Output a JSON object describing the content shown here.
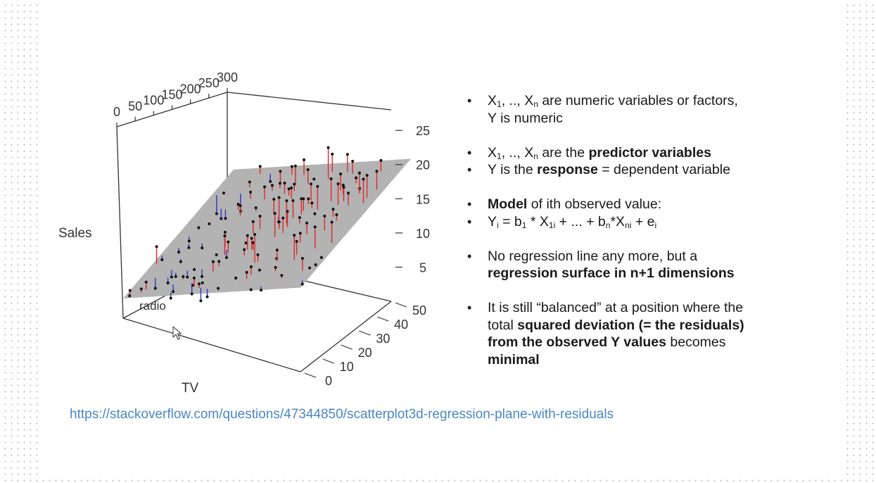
{
  "slide": {
    "bullets": [
      {
        "parts": [
          {
            "t": "X"
          },
          {
            "sub": "1"
          },
          {
            "t": ", .., X"
          },
          {
            "sub": "n"
          },
          {
            "t": " are numeric variables or factors,"
          },
          {
            "br": true
          },
          {
            "t": "Y is numeric"
          }
        ]
      },
      {
        "gap": true,
        "parts": [
          {
            "t": "X"
          },
          {
            "sub": "1"
          },
          {
            "t": ", .., X"
          },
          {
            "sub": "n"
          },
          {
            "t": " are  the "
          },
          {
            "b": "predictor variables"
          }
        ]
      },
      {
        "parts": [
          {
            "t": "Y is the "
          },
          {
            "b": "response"
          },
          {
            "t": " = dependent variable"
          }
        ]
      },
      {
        "gap": true,
        "parts": [
          {
            "b": "Model"
          },
          {
            "t": " of ith observed value:"
          }
        ]
      },
      {
        "parts": [
          {
            "t": "Y"
          },
          {
            "sub": "i"
          },
          {
            "t": " =  b"
          },
          {
            "sub": "1"
          },
          {
            "t": " * X"
          },
          {
            "sub": "1i"
          },
          {
            "t": " + ... + b"
          },
          {
            "sub": "n"
          },
          {
            "t": "*X"
          },
          {
            "sub": "ni"
          },
          {
            "t": " + e"
          },
          {
            "sub": "i"
          }
        ]
      },
      {
        "gap": true,
        "parts": [
          {
            "t": "No regression line any more, but a"
          },
          {
            "br": true
          },
          {
            "b": "regression surface in n+1 dimensions"
          }
        ]
      },
      {
        "gap": true,
        "parts": [
          {
            "t": "It is still “balanced” at a position where the"
          },
          {
            "br": true
          },
          {
            "t": "total "
          },
          {
            "b": "squared deviation (= the residuals)"
          },
          {
            "br": true
          },
          {
            "b": "from the observed Y values"
          },
          {
            "t": " becomes"
          },
          {
            "br": true
          },
          {
            "b": "minimal"
          }
        ]
      }
    ],
    "source_url": "https://stackoverflow.com/questions/47344850/scatterplot3d-regression-plane-with-residuals"
  },
  "plot": {
    "axis_labels": {
      "x": "TV",
      "y": "radio",
      "z": "Sales"
    },
    "x_ticks": [
      "0",
      "50",
      "100",
      "150",
      "200",
      "250",
      "300"
    ],
    "y_ticks": [
      "0",
      "10",
      "20",
      "30",
      "40",
      "50"
    ],
    "z_ticks": [
      "5",
      "10",
      "15",
      "20",
      "25"
    ],
    "colors": {
      "plane": "#b3b3b3",
      "point": "#111111",
      "residual_pos": "#e0262a",
      "residual_neg": "#2e33c9",
      "frame": "#333333"
    }
  },
  "chart_data": {
    "type": "scatter",
    "xlabel": "TV",
    "ylabel": "radio",
    "zlabel": "Sales",
    "xlim": [
      0,
      300
    ],
    "ylim": [
      0,
      50
    ],
    "zlim": [
      0,
      28
    ],
    "plane": {
      "intercept": 2.9,
      "b_tv": 0.046,
      "b_radio": 0.188
    },
    "x": [
      205.5,
      115.4,
      136.9,
      123.1,
      5.0,
      263.4,
      262.2,
      37.8,
      70.2,
      147.3,
      260.3,
      239.4,
      26.1,
      225.6,
      157.7,
      58.8,
      124.5,
      169.6,
      101.6,
      271.7,
      41.2,
      254.1,
      91.0,
      7.1,
      99.4,
      179.7,
      8.8,
      222.9,
      284.2,
      127.9,
      141.6,
      159.9,
      68.5,
      194.6,
      110.3,
      17.6,
      130.9,
      229.3,
      237.6,
      45.1,
      232.4,
      227.7,
      273.5,
      87.3,
      198.0,
      220.1,
      26.8,
      277.0,
      60.0,
      65.1,
      188.2,
      205.2,
      276.4,
      189.1,
      279.1,
      55.2,
      242.1,
      243.4,
      212.7,
      246.9,
      222.3,
      47.0,
      172.5,
      14.6,
      38.5,
      18.2,
      193.0,
      64.9,
      96.6,
      197.6,
      18.3,
      103.7,
      207.5,
      210.6,
      68.5,
      69.0,
      29.3,
      176.7,
      94.5,
      81.2,
      279.3,
      202.8,
      14.6,
      87.9,
      62.2,
      96.5,
      11.7,
      101.7,
      48.0,
      70.2,
      37.3,
      141.1,
      27.0,
      99.0,
      248.4,
      18.5,
      29.6,
      224.2,
      158.9,
      104.5,
      80.3,
      200.8,
      136.6,
      285.4,
      253.5,
      150.2,
      186.1,
      167.3,
      232.3,
      52.8,
      49.0,
      150.5,
      166.6,
      194.0,
      185.4,
      10.8,
      111.3,
      173.9,
      10.9,
      73.4,
      121.7,
      43.6,
      11.1,
      256.0,
      6.3,
      223.0,
      240.0,
      44.0,
      157.1,
      203.7
    ],
    "y": [
      6.3,
      3.7,
      42.6,
      9.5,
      26.3,
      30.5,
      26.6,
      13.0,
      30.7,
      28.7,
      17.3,
      1.5,
      42.0,
      12.5,
      33.4,
      12.0,
      5.6,
      41.6,
      25.7,
      36.5,
      46.3,
      9.3,
      19.2,
      12.7,
      26.3,
      31.6,
      38.0,
      43.5,
      12.0,
      29.5,
      3.9,
      29.5,
      36.3,
      43.3,
      38.5,
      48.7,
      38.2,
      47.7,
      23.6,
      4.4,
      21.4,
      23.1,
      44.3,
      25.1,
      47.2,
      24.6,
      16.6,
      34.5,
      16.0,
      13.3,
      31.3,
      40.9,
      22.3,
      35.2,
      30.0,
      9.1,
      16.9,
      3.1,
      30.9,
      18.6,
      16.8,
      33.6,
      30.0,
      20.4,
      32.1,
      4.6,
      33.2,
      20.3,
      19.6,
      40.1,
      17.8,
      18.4,
      37.1,
      46.9,
      30.0,
      41.1,
      31.8,
      25.5,
      44.3,
      40.5,
      18.6,
      7.8,
      19.9,
      7.1,
      7.2,
      16.3,
      3.9,
      24.5,
      47.6,
      36.0,
      27.9,
      22.0,
      11.3,
      0.7,
      39.9,
      18.1,
      19.3,
      43.4,
      43.7,
      48.0,
      1.1,
      11.6,
      30.9,
      9.0,
      25.8,
      23.0,
      23.2,
      26.6,
      37.2,
      19.9,
      49.2,
      30.7,
      7.0,
      17.3,
      13.8,
      22.6,
      17.2,
      36.0,
      0.7,
      48.3,
      22.0,
      8.1,
      0.8,
      22.0,
      35.4,
      38.9,
      8.2,
      38.4,
      5.0,
      31.1
    ],
    "z": [
      12.1,
      8.3,
      19.3,
      9.7,
      8.4,
      25.3,
      20.1,
      7.5,
      12.9,
      16.1,
      19.8,
      11.5,
      12.4,
      16.6,
      17.3,
      6.9,
      9.1,
      19.6,
      14.0,
      24.1,
      15.3,
      17.1,
      13.5,
      4.8,
      13.5,
      19.4,
      9.9,
      24.3,
      17.1,
      17.8,
      9.5,
      19.1,
      14.5,
      21.8,
      16.6,
      12.3,
      17.7,
      25.1,
      19.3,
      4.3,
      19.2,
      18.7,
      25.4,
      12.5,
      24.4,
      19.2,
      5.7,
      24.7,
      7.6,
      8.1,
      19.2,
      22.1,
      22.0,
      21.6,
      24.0,
      6.6,
      18.0,
      14.7,
      20.9,
      18.5,
      18.1,
      11.5,
      19.0,
      5.5,
      11.9,
      5.7,
      18.8,
      10.4,
      12.6,
      22.6,
      7.3,
      10.0,
      22.7,
      24.7,
      15.8,
      17.4,
      11.2,
      15.1,
      18.7,
      16.2,
      20.4,
      12.4,
      7.9,
      7.9,
      6.1,
      10.2,
      4.7,
      14.2,
      14.0,
      13.2,
      9.6,
      15.2,
      5.2,
      7.0,
      22.6,
      8.4,
      7.7,
      22.0,
      19.3,
      19.8,
      9.3,
      15.1,
      17.2,
      18.8,
      21.5,
      16.0,
      17.9,
      19.0,
      23.0,
      10.5,
      14.7,
      17.9,
      12.1,
      15.6,
      15.5,
      6.5,
      13.4,
      18.0,
      3.2,
      15.2,
      12.4,
      5.7,
      4.0,
      21.4,
      9.6,
      21.8,
      12.9,
      12.7,
      11.4,
      18.9
    ]
  }
}
